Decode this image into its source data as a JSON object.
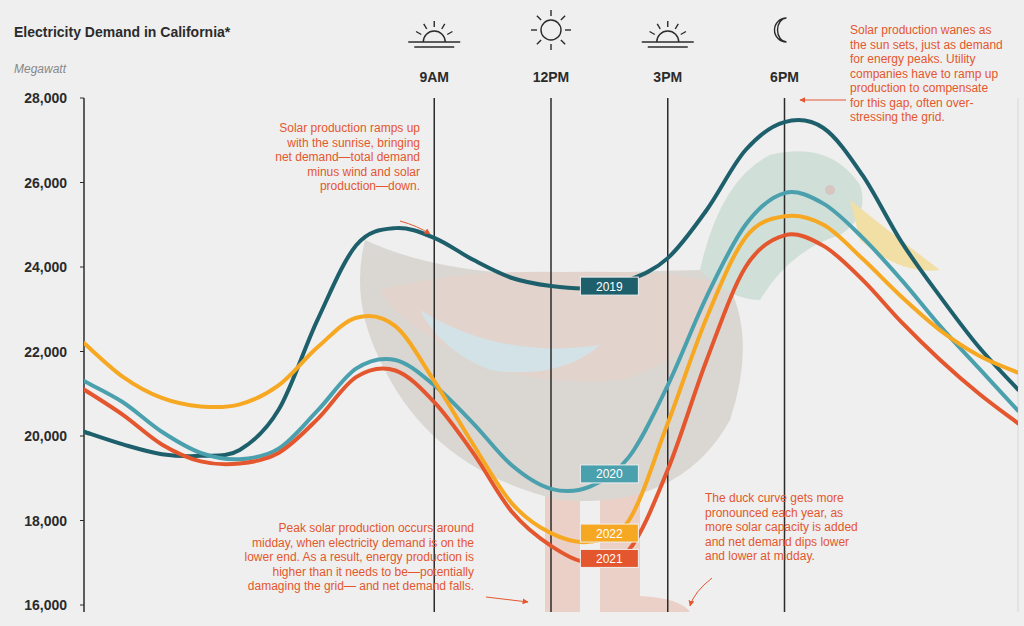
{
  "chart_data": {
    "type": "line",
    "title": "Electricity Demand in California*",
    "subtitle": "Megawatt",
    "x": [
      0,
      1,
      2,
      3,
      4,
      5,
      6,
      7,
      8,
      9,
      10,
      11,
      12,
      13,
      14,
      15,
      16,
      17,
      18,
      19,
      20,
      21,
      22,
      23,
      24
    ],
    "xlim": [
      0,
      24
    ],
    "xticks": [
      {
        "value": 9,
        "label": "9AM"
      },
      {
        "value": 12,
        "label": "12PM"
      },
      {
        "value": 15,
        "label": "3PM"
      },
      {
        "value": 18,
        "label": "6PM"
      }
    ],
    "ylim": [
      16000,
      28000
    ],
    "yticks": [
      {
        "value": 16000,
        "label": "16,000"
      },
      {
        "value": 18000,
        "label": "18,000"
      },
      {
        "value": 20000,
        "label": "20,000"
      },
      {
        "value": 22000,
        "label": "22,000"
      },
      {
        "value": 24000,
        "label": "24,000"
      },
      {
        "value": 26000,
        "label": "26,000"
      },
      {
        "value": 28000,
        "label": "28,000"
      }
    ],
    "grid": false,
    "series": [
      {
        "name": "2019",
        "color": "#1e5f6c",
        "values": [
          20100,
          19800,
          19570,
          19530,
          19670,
          20620,
          22750,
          24520,
          24920,
          24690,
          24170,
          23740,
          23550,
          23500,
          23690,
          24210,
          25350,
          26770,
          27430,
          27290,
          26180,
          24600,
          23300,
          22100,
          21100
        ]
      },
      {
        "name": "2020",
        "color": "#4ba0ad",
        "values": [
          21300,
          20800,
          20100,
          19600,
          19450,
          19700,
          20600,
          21600,
          21800,
          21200,
          20300,
          19300,
          18750,
          18800,
          19500,
          21200,
          23300,
          25000,
          25750,
          25500,
          24700,
          23700,
          22600,
          21600,
          20600
        ]
      },
      {
        "name": "2021",
        "color": "#e4572e",
        "values": [
          21100,
          20500,
          19800,
          19400,
          19350,
          19600,
          20400,
          21400,
          21550,
          20800,
          19600,
          18200,
          17400,
          17000,
          17300,
          19200,
          21800,
          24000,
          24750,
          24500,
          23700,
          22700,
          21800,
          21000,
          20300
        ]
      },
      {
        "name": "2022",
        "color": "#f7a823",
        "values": [
          22200,
          21400,
          20900,
          20700,
          20750,
          21200,
          22100,
          22800,
          22600,
          21300,
          19800,
          18400,
          17700,
          17500,
          18000,
          20300,
          22800,
          24700,
          25200,
          25000,
          24200,
          23300,
          22500,
          21900,
          21500
        ]
      }
    ],
    "annotations": [
      {
        "lines": [
          "Solar production wanes as",
          "the sun sets, just as demand",
          "for energy peaks. Utility",
          "companies have to ramp up",
          "production to compensate",
          "for this gap, often over-",
          "stressing the grid."
        ]
      },
      {
        "lines": [
          "Solar production ramps up",
          "with the sunrise, bringing",
          "net demand—total demand",
          "minus wind and solar",
          "production—down."
        ]
      },
      {
        "lines": [
          "Peak solar production occurs around",
          "midday, when electricity demand is on the",
          "lower end. As a result, energy production is",
          "higher than it needs to be—potentially",
          "damaging the grid— and net demand falls."
        ]
      },
      {
        "lines": [
          "The duck curve gets more",
          "pronounced each year, as",
          "more solar capacity is added",
          "and net demand dips lower",
          "and lower at midday."
        ]
      }
    ]
  }
}
